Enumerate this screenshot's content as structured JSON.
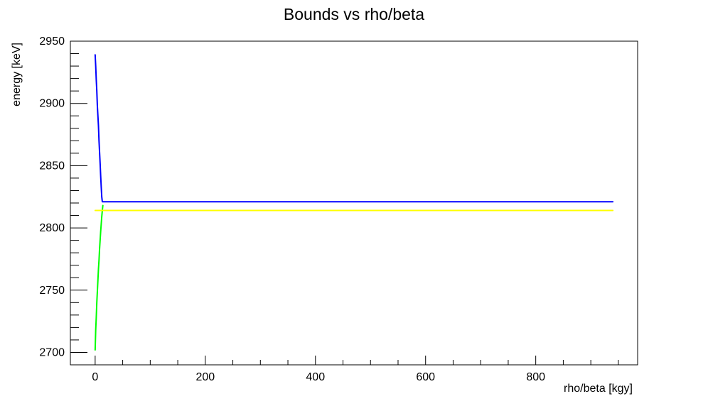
{
  "chart_data": {
    "type": "line",
    "title": "Bounds vs rho/beta",
    "xlabel": "rho/beta [kgy]",
    "ylabel": "energy [keV]",
    "xlim": [
      -45,
      985
    ],
    "ylim": [
      2690,
      2950
    ],
    "x_ticks": [
      0,
      200,
      400,
      600,
      800
    ],
    "y_ticks": [
      2700,
      2750,
      2800,
      2850,
      2900,
      2950
    ],
    "x_minor_step": 50,
    "y_minor_step": 10,
    "grid": false,
    "legend": "none",
    "series": [
      {
        "color": "#0000ff",
        "x": [
          0,
          1,
          2,
          3,
          4,
          5,
          6,
          7,
          8,
          9,
          10,
          11,
          12,
          13,
          940
        ],
        "y": [
          2939,
          2930,
          2919,
          2910,
          2898,
          2890,
          2882,
          2870,
          2861,
          2852,
          2842,
          2833,
          2825,
          2821,
          2821
        ]
      },
      {
        "color": "#00ff00",
        "x": [
          0,
          1,
          2,
          3,
          4,
          5,
          6,
          7,
          8,
          9,
          10,
          11,
          12,
          13,
          14
        ],
        "y": [
          2702,
          2718,
          2728,
          2740,
          2749,
          2758,
          2767,
          2774,
          2783,
          2790,
          2797,
          2803,
          2809,
          2814,
          2818
        ]
      },
      {
        "color": "#ffff00",
        "x": [
          0,
          940
        ],
        "y": [
          2814,
          2814
        ]
      }
    ]
  }
}
